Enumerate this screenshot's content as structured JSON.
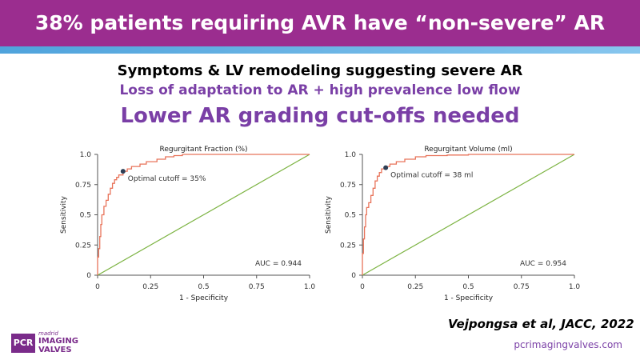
{
  "banner": {
    "title": "38% patients requiring AVR have “non-severe” AR"
  },
  "headlines": {
    "line1": "Symptoms & LV remodeling suggesting severe AR",
    "line2": "Loss of adaptation to AR + high prevalence low flow",
    "line3": "Lower AR grading cut-offs needed"
  },
  "citation": "Vejpongsa et al, JACC, 2022",
  "footer": {
    "logo_box": "PCR",
    "logo_small": "madrid",
    "logo_line1": "IMAGING",
    "logo_line2": "VALVES",
    "site": "pcrimagingvalves.com"
  },
  "colors": {
    "banner": "#9b2d8f",
    "accent": "#7a3fa6",
    "roc": "#e8735a",
    "reference": "#7cb342",
    "cutoff_marker": "#2e3f55"
  },
  "chart_data": [
    {
      "type": "line",
      "title": "Regurgitant Fraction (%)",
      "xlabel": "1 - Specificity",
      "ylabel": "Sensitivity",
      "xlim": [
        0,
        1
      ],
      "ylim": [
        0,
        1
      ],
      "xticks": [
        "0",
        "0.25",
        "0.5",
        "0.75",
        "1.0"
      ],
      "yticks": [
        "0",
        "0.25",
        "0.5",
        "0.75",
        "1.0"
      ],
      "series": [
        {
          "x": [
            0,
            0,
            0.005,
            0.005,
            0.01,
            0.01,
            0.015,
            0.015,
            0.02,
            0.02,
            0.03,
            0.03,
            0.04,
            0.04,
            0.05,
            0.05,
            0.06,
            0.06,
            0.07,
            0.07,
            0.08,
            0.08,
            0.09,
            0.09,
            0.1,
            0.1,
            0.12,
            0.12,
            0.14,
            0.14,
            0.16,
            0.16,
            0.2,
            0.2,
            0.23,
            0.23,
            0.28,
            0.28,
            0.32,
            0.32,
            0.36,
            0.36,
            0.4,
            0.4,
            1.0
          ],
          "y": [
            0,
            0.15,
            0.15,
            0.22,
            0.22,
            0.32,
            0.32,
            0.42,
            0.42,
            0.5,
            0.5,
            0.57,
            0.57,
            0.62,
            0.62,
            0.67,
            0.67,
            0.72,
            0.72,
            0.76,
            0.76,
            0.79,
            0.79,
            0.81,
            0.81,
            0.83,
            0.83,
            0.86,
            0.86,
            0.88,
            0.88,
            0.9,
            0.9,
            0.92,
            0.92,
            0.94,
            0.94,
            0.96,
            0.96,
            0.98,
            0.98,
            0.99,
            0.99,
            1.0,
            1.0
          ]
        },
        {
          "x": [
            0,
            1
          ],
          "y": [
            0,
            1
          ]
        }
      ],
      "cutoff": {
        "x": 0.12,
        "y": 0.86,
        "label": "Optimal cutoff = 35%"
      },
      "auc_label": "AUC = 0.944",
      "grid": false
    },
    {
      "type": "line",
      "title": "Regurgitant Volume (ml)",
      "xlabel": "1 - Specificity",
      "ylabel": "Sensitivity",
      "xlim": [
        0,
        1
      ],
      "ylim": [
        0,
        1
      ],
      "xticks": [
        "0",
        "0.25",
        "0.5",
        "0.75",
        "1.0"
      ],
      "yticks": [
        "0",
        "0.25",
        "0.5",
        "0.75",
        "1.0"
      ],
      "series": [
        {
          "x": [
            0,
            0,
            0.005,
            0.005,
            0.01,
            0.01,
            0.015,
            0.015,
            0.02,
            0.02,
            0.03,
            0.03,
            0.04,
            0.04,
            0.05,
            0.05,
            0.06,
            0.06,
            0.07,
            0.07,
            0.08,
            0.08,
            0.09,
            0.09,
            0.11,
            0.11,
            0.13,
            0.13,
            0.16,
            0.16,
            0.2,
            0.2,
            0.25,
            0.25,
            0.3,
            0.3,
            0.4,
            0.4,
            0.5,
            0.5,
            1.0
          ],
          "y": [
            0,
            0.18,
            0.18,
            0.3,
            0.3,
            0.4,
            0.4,
            0.5,
            0.5,
            0.56,
            0.56,
            0.6,
            0.6,
            0.66,
            0.66,
            0.72,
            0.72,
            0.78,
            0.78,
            0.82,
            0.82,
            0.85,
            0.85,
            0.88,
            0.88,
            0.9,
            0.9,
            0.92,
            0.92,
            0.94,
            0.94,
            0.96,
            0.96,
            0.98,
            0.98,
            0.99,
            0.99,
            0.995,
            0.995,
            1.0,
            1.0
          ]
        },
        {
          "x": [
            0,
            1
          ],
          "y": [
            0,
            1
          ]
        }
      ],
      "cutoff": {
        "x": 0.11,
        "y": 0.89,
        "label": "Optimal cutoff = 38 ml"
      },
      "auc_label": "AUC = 0.954",
      "grid": false
    }
  ]
}
